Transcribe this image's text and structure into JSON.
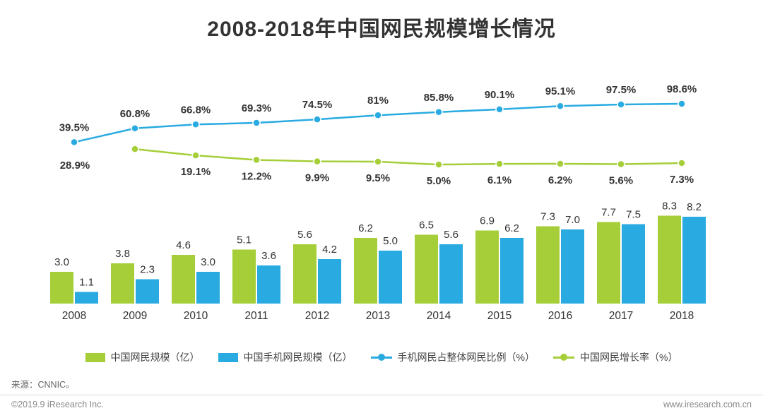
{
  "title": "2008-2018年中国网民规模增长情况",
  "source": "来源：CNNIC。",
  "footer": {
    "copyright": "©2019.9 iResearch Inc.",
    "website": "www.iresearch.com.cn"
  },
  "colors": {
    "green": "#a5ce39",
    "blue": "#29abe2",
    "text": "#333333",
    "muted": "#888888"
  },
  "chart_data": {
    "type": "combo-bar-line",
    "title": "2008-2018年中国网民规模增长情况",
    "categories": [
      "2008",
      "2009",
      "2010",
      "2011",
      "2012",
      "2013",
      "2014",
      "2015",
      "2016",
      "2017",
      "2018"
    ],
    "bar_series": [
      {
        "name": "中国网民规模（亿）",
        "color_key": "green",
        "values": [
          3.0,
          3.8,
          4.6,
          5.1,
          5.6,
          6.2,
          6.5,
          6.9,
          7.3,
          7.7,
          8.3
        ],
        "labels": [
          "3.0",
          "3.8",
          "4.6",
          "5.1",
          "5.6",
          "6.2",
          "6.5",
          "6.9",
          "7.3",
          "7.7",
          "8.3"
        ]
      },
      {
        "name": "中国手机网民规模（亿）",
        "color_key": "blue",
        "values": [
          1.1,
          2.3,
          3.0,
          3.6,
          4.2,
          5.0,
          5.6,
          6.2,
          7.0,
          7.5,
          8.2
        ],
        "labels": [
          "1.1",
          "2.3",
          "3.0",
          "3.6",
          "4.2",
          "5.0",
          "5.6",
          "6.2",
          "7.0",
          "7.5",
          "8.2"
        ]
      }
    ],
    "line_series": [
      {
        "name": "手机网民占整体网民比例（%）",
        "color_key": "blue",
        "start_index": 0,
        "values": [
          39.5,
          60.8,
          66.8,
          69.3,
          74.5,
          81,
          85.8,
          90.1,
          95.1,
          97.5,
          98.6
        ],
        "labels": [
          "39.5%",
          "60.8%",
          "66.8%",
          "69.3%",
          "74.5%",
          "81%",
          "85.8%",
          "90.1%",
          "95.1%",
          "97.5%",
          "98.6%"
        ],
        "label_position": "above"
      },
      {
        "name": "中国网民增长率（%）",
        "color_key": "green",
        "start_index": 1,
        "values": [
          28.9,
          19.1,
          12.2,
          9.9,
          9.5,
          5.0,
          6.1,
          6.2,
          5.6,
          7.3
        ],
        "labels": [
          "28.9%",
          "19.1%",
          "12.2%",
          "9.9%",
          "9.5%",
          "5.0%",
          "6.1%",
          "6.2%",
          "5.6%",
          "7.3%"
        ],
        "label_position": "below"
      }
    ],
    "legend": [
      {
        "label": "中国网民规模（亿）",
        "type": "bar",
        "color_key": "green"
      },
      {
        "label": "中国手机网民规模（亿）",
        "type": "bar",
        "color_key": "blue"
      },
      {
        "label": "手机网民占整体网民比例（%）",
        "type": "line",
        "color_key": "blue"
      },
      {
        "label": "中国网民增长率（%）",
        "type": "line",
        "color_key": "green"
      }
    ],
    "ylim_bars": [
      0,
      8.8
    ],
    "ylim_lines": [
      0,
      110
    ],
    "grid": false,
    "legend_position": "bottom"
  }
}
